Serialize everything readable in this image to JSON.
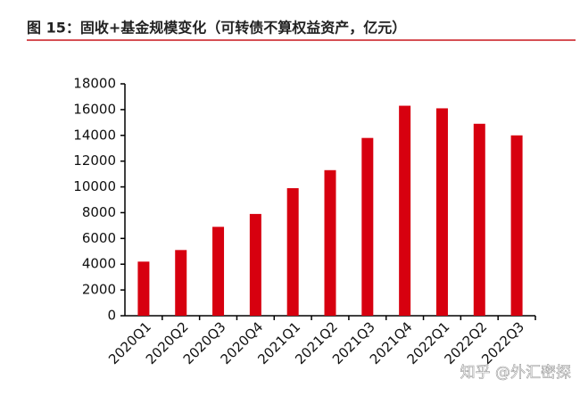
{
  "chart_data": {
    "type": "bar",
    "title": "图 15：固收+基金规模变化（可转债不算权益资产，亿元）",
    "categories": [
      "2020Q1",
      "2020Q2",
      "2020Q3",
      "2020Q4",
      "2021Q1",
      "2021Q2",
      "2021Q3",
      "2021Q4",
      "2022Q1",
      "2022Q2",
      "2022Q3"
    ],
    "values": [
      4200,
      5100,
      6900,
      7900,
      9900,
      11300,
      13800,
      16300,
      16100,
      14900,
      14000
    ],
    "color": "#d7000f",
    "ylim": [
      0,
      18000
    ],
    "yticks": [
      0,
      2000,
      4000,
      6000,
      8000,
      10000,
      12000,
      14000,
      16000,
      18000
    ],
    "grid": false,
    "watermark": "知乎 @外汇密探"
  }
}
